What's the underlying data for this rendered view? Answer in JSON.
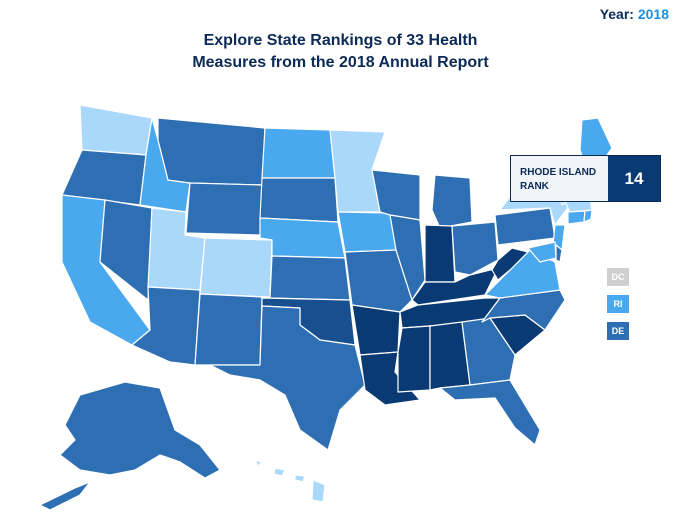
{
  "year": {
    "label": "Year:",
    "value": "2018"
  },
  "title": {
    "line1": "Explore State Rankings of 33 Health",
    "line2": "Measures from the 2018 Annual Report"
  },
  "tooltip": {
    "state_line1": "RHODE ISLAND",
    "state_line2": "RANK",
    "rank": "14"
  },
  "legend": [
    {
      "label": "DC",
      "color": "#cfcfcf"
    },
    {
      "label": "RI",
      "color": "#4aa8ef"
    },
    {
      "label": "DE",
      "color": "#2e6fb3"
    }
  ],
  "colors": {
    "tier1": "#a9d8fb",
    "tier2": "#4aa8ef",
    "tier3": "#2e6fb3",
    "tier4": "#174f8f",
    "tier5": "#0a3a73"
  }
}
